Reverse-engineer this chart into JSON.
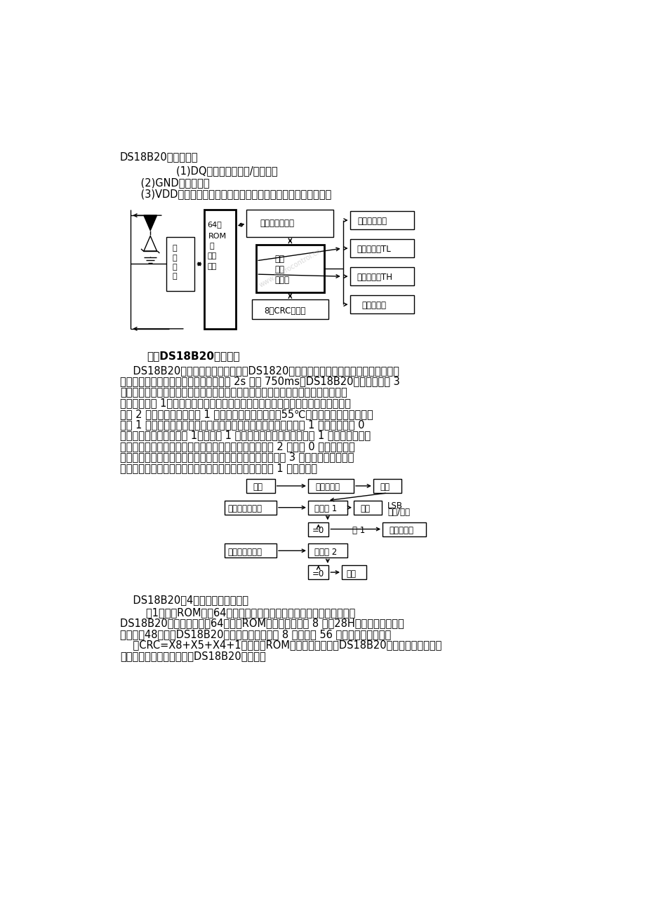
{
  "bg_color": "#ffffff",
  "text_color": "#000000",
  "title1": "DS18B20引脚定义：",
  "para1": "        (1)DQ为数字信号输入/输出端；",
  "para2": "    (2)GND为电源地；",
  "para3": "    (3)VDD为外接供电电源输入端（在寄生电源接线方式时接地）。",
  "heading2": "    三、DS18B20工作原理",
  "body_lines": [
    "    DS18B20的读写时序和测温原理与DS1820相同，只是得到的温度值的位数因分辨率",
    "不同而不同，且温度转换时的延时时间由 2s 减为 750ms。DS18B20测温原理如图 3",
    "所示。图中低温度系数晶振的振荡频率受温度影响很小，用于产生固定频率的脉冲信",
    "号送给计数器 1。高温度系数晶随温度变化其振荡率明显改变，所产生的信号作为计",
    "数器 2 的脉冲输入。计数器 1 和温度寄存器被预置在－55℃所对应的一个基数值。计",
    "数器 1 对低温度系数晶振产生的脉冲信号进行减法计数，当计数器 1 的预置值减到 0",
    "时，温度寄存器的値将加 1，计数器 1 的预置将重新被装入，计数器 1 重新开始对低温",
    "度系数晶产生的脉冲信号进行计数，如此循环直到计数器 2 计数到 0 时，停止温度",
    "寄存器値的累加，此时温度寄存器中的数値即为所测温度。图 3 中的斜率累加器用于",
    "补偿和修正测温过程中的非线性，其输出用于修正计数器 1 的预置値。"
  ],
  "para_4parts": "    DS18B20有4个主要的数据部件：",
  "rom_lines": [
    "        （1）光刺ROM中的64位序列号是出厂前被光刺好的，它可以看作是该",
    "DS18B20的地址序列码。64位光刺ROM的排列是：开始 8 位（28H）是产品类型标号",
    "，接着的48位是该DS18B20自身的序列号，最后 8 位是前面 56 位的循环冗余校验码",
    "    （CRC=X8+X5+X4+1）。光刺ROM的作用是使每一个DS18B20都各不相同，这样就",
    "可以实现一根总线上挂接多DS18B20的目的。"
  ]
}
